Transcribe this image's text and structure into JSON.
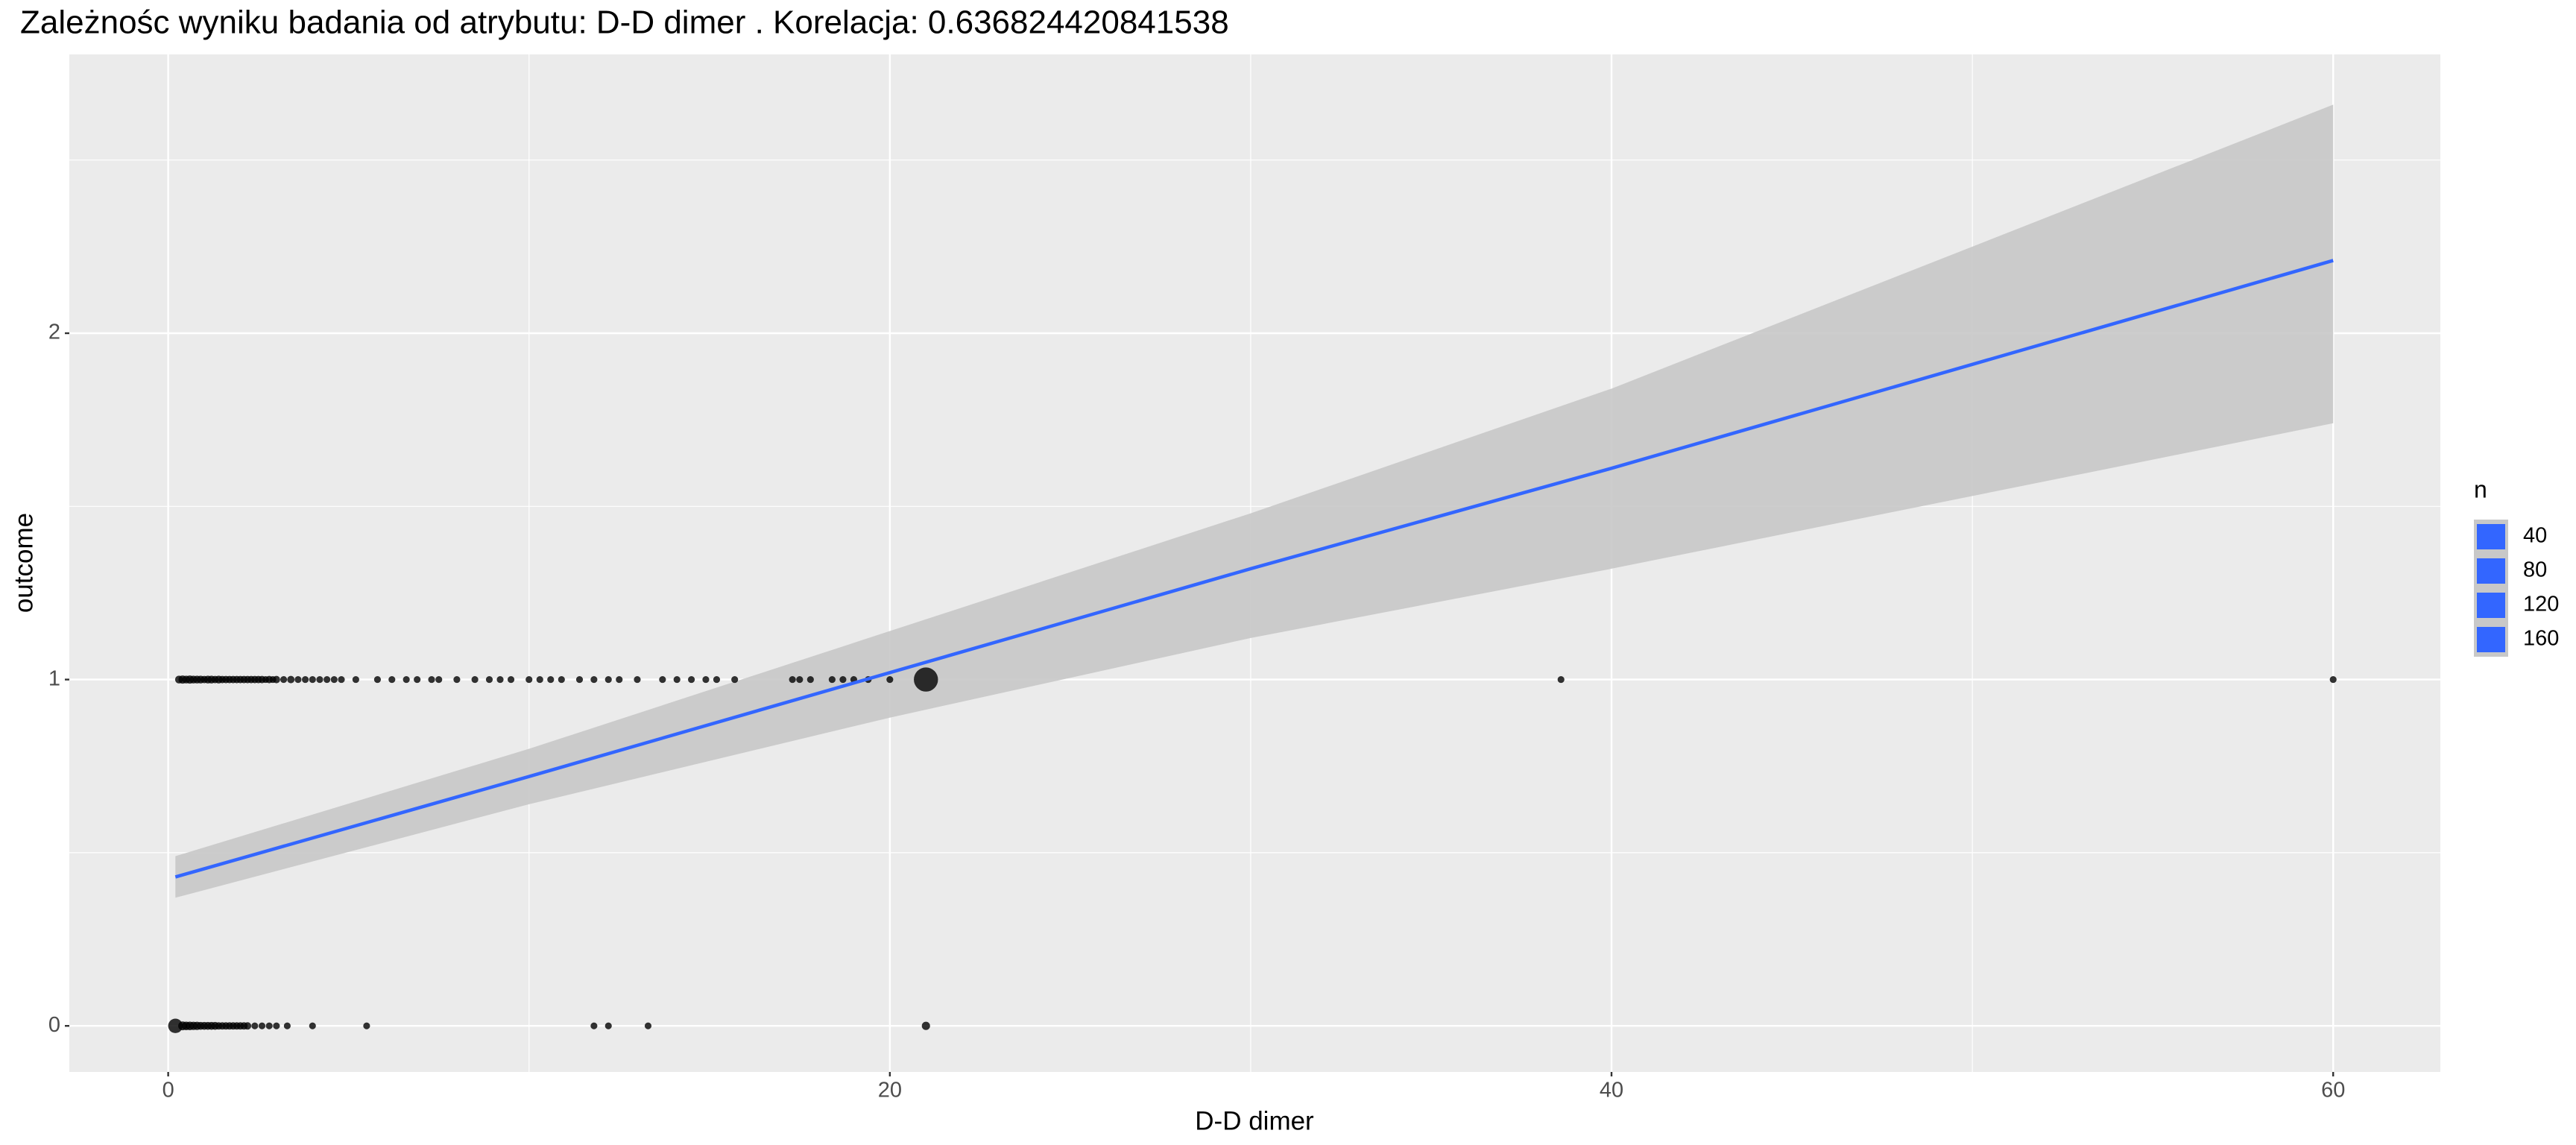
{
  "chart_data": {
    "type": "scatter",
    "title": "Zależnośc wyniku badania od atrybutu:  D-D dimer . Korelacja:  0.636824420841538",
    "x_label": "D-D dimer",
    "y_label": "outcome",
    "xlim": [
      -2.74,
      62.97
    ],
    "ylim": [
      -0.133,
      2.805
    ],
    "xticks": [
      0,
      20,
      40,
      60
    ],
    "yticks": [
      0,
      1,
      2
    ],
    "xminorticks": [
      10,
      30,
      50
    ],
    "yminorticks": [
      0.5,
      1.5,
      2.5
    ],
    "grid": true,
    "point_color": "#000000",
    "series": [
      {
        "y": 1,
        "x": [
          0.3,
          0.4,
          0.5,
          0.6,
          0.7,
          0.8,
          0.9,
          1.0,
          1.1,
          1.2,
          1.3,
          1.4,
          1.5,
          1.6,
          1.7,
          1.8,
          1.9,
          2.0,
          2.1,
          2.2,
          2.3,
          2.4,
          2.5,
          2.6,
          2.7,
          2.8,
          2.9,
          3.0,
          3.2,
          3.4,
          3.6,
          3.8,
          4.0,
          4.2,
          4.4,
          4.6,
          4.8,
          5.2,
          5.8,
          6.2,
          6.6,
          6.9,
          7.3,
          7.5,
          8.0,
          8.5,
          8.9,
          9.2,
          9.5,
          10.0,
          10.3,
          10.6,
          10.9,
          11.4,
          11.8,
          12.2,
          12.5,
          13.0,
          13.7,
          14.1,
          14.5,
          14.9,
          15.2,
          15.7,
          17.3,
          17.5,
          17.8,
          18.4,
          18.7,
          19.0,
          19.4,
          20.0,
          21.0,
          38.6,
          60.0
        ],
        "size": [
          3,
          4,
          3,
          4,
          3,
          3,
          3,
          2,
          3,
          3,
          2,
          3,
          2,
          2,
          2,
          2,
          2,
          2,
          2,
          2,
          2,
          2,
          2,
          2,
          1,
          2,
          1,
          2,
          1,
          2,
          1,
          1,
          1,
          1,
          1,
          1,
          1,
          1,
          1,
          1,
          1,
          1,
          1,
          1,
          1,
          1,
          1,
          1,
          1,
          1,
          1,
          1,
          1,
          1,
          1,
          1,
          1,
          1,
          1,
          1,
          1,
          1,
          1,
          1,
          1,
          1,
          1,
          1,
          1,
          1,
          1,
          1,
          170,
          1,
          1
        ]
      },
      {
        "y": 0,
        "x": [
          0.2,
          0.4,
          0.5,
          0.6,
          0.7,
          0.8,
          0.9,
          1.0,
          1.1,
          1.2,
          1.3,
          1.4,
          1.5,
          1.6,
          1.7,
          1.8,
          1.9,
          2.0,
          2.1,
          2.2,
          2.4,
          2.6,
          2.8,
          3.0,
          3.3,
          4.0,
          5.5,
          11.8,
          12.2,
          13.3,
          21.0
        ],
        "size": [
          40,
          6,
          5,
          5,
          4,
          4,
          3,
          3,
          3,
          3,
          3,
          2,
          2,
          2,
          2,
          2,
          2,
          2,
          2,
          2,
          1,
          1,
          1,
          1,
          1,
          1,
          1,
          1,
          1,
          1,
          4
        ]
      }
    ],
    "fit": {
      "color": "#3366ff",
      "band_color": "#c8c8c8",
      "x": [
        0.2,
        10,
        20,
        30,
        40,
        50,
        60
      ],
      "y": [
        0.43,
        0.72,
        1.02,
        1.32,
        1.61,
        1.91,
        2.21
      ],
      "lower": [
        0.37,
        0.64,
        0.89,
        1.12,
        1.32,
        1.53,
        1.74
      ],
      "upper": [
        0.49,
        0.8,
        1.14,
        1.48,
        1.84,
        2.25,
        2.66
      ]
    },
    "legend": {
      "title": "n",
      "values": [
        40,
        80,
        120,
        160
      ],
      "color": "#3366ff"
    }
  }
}
